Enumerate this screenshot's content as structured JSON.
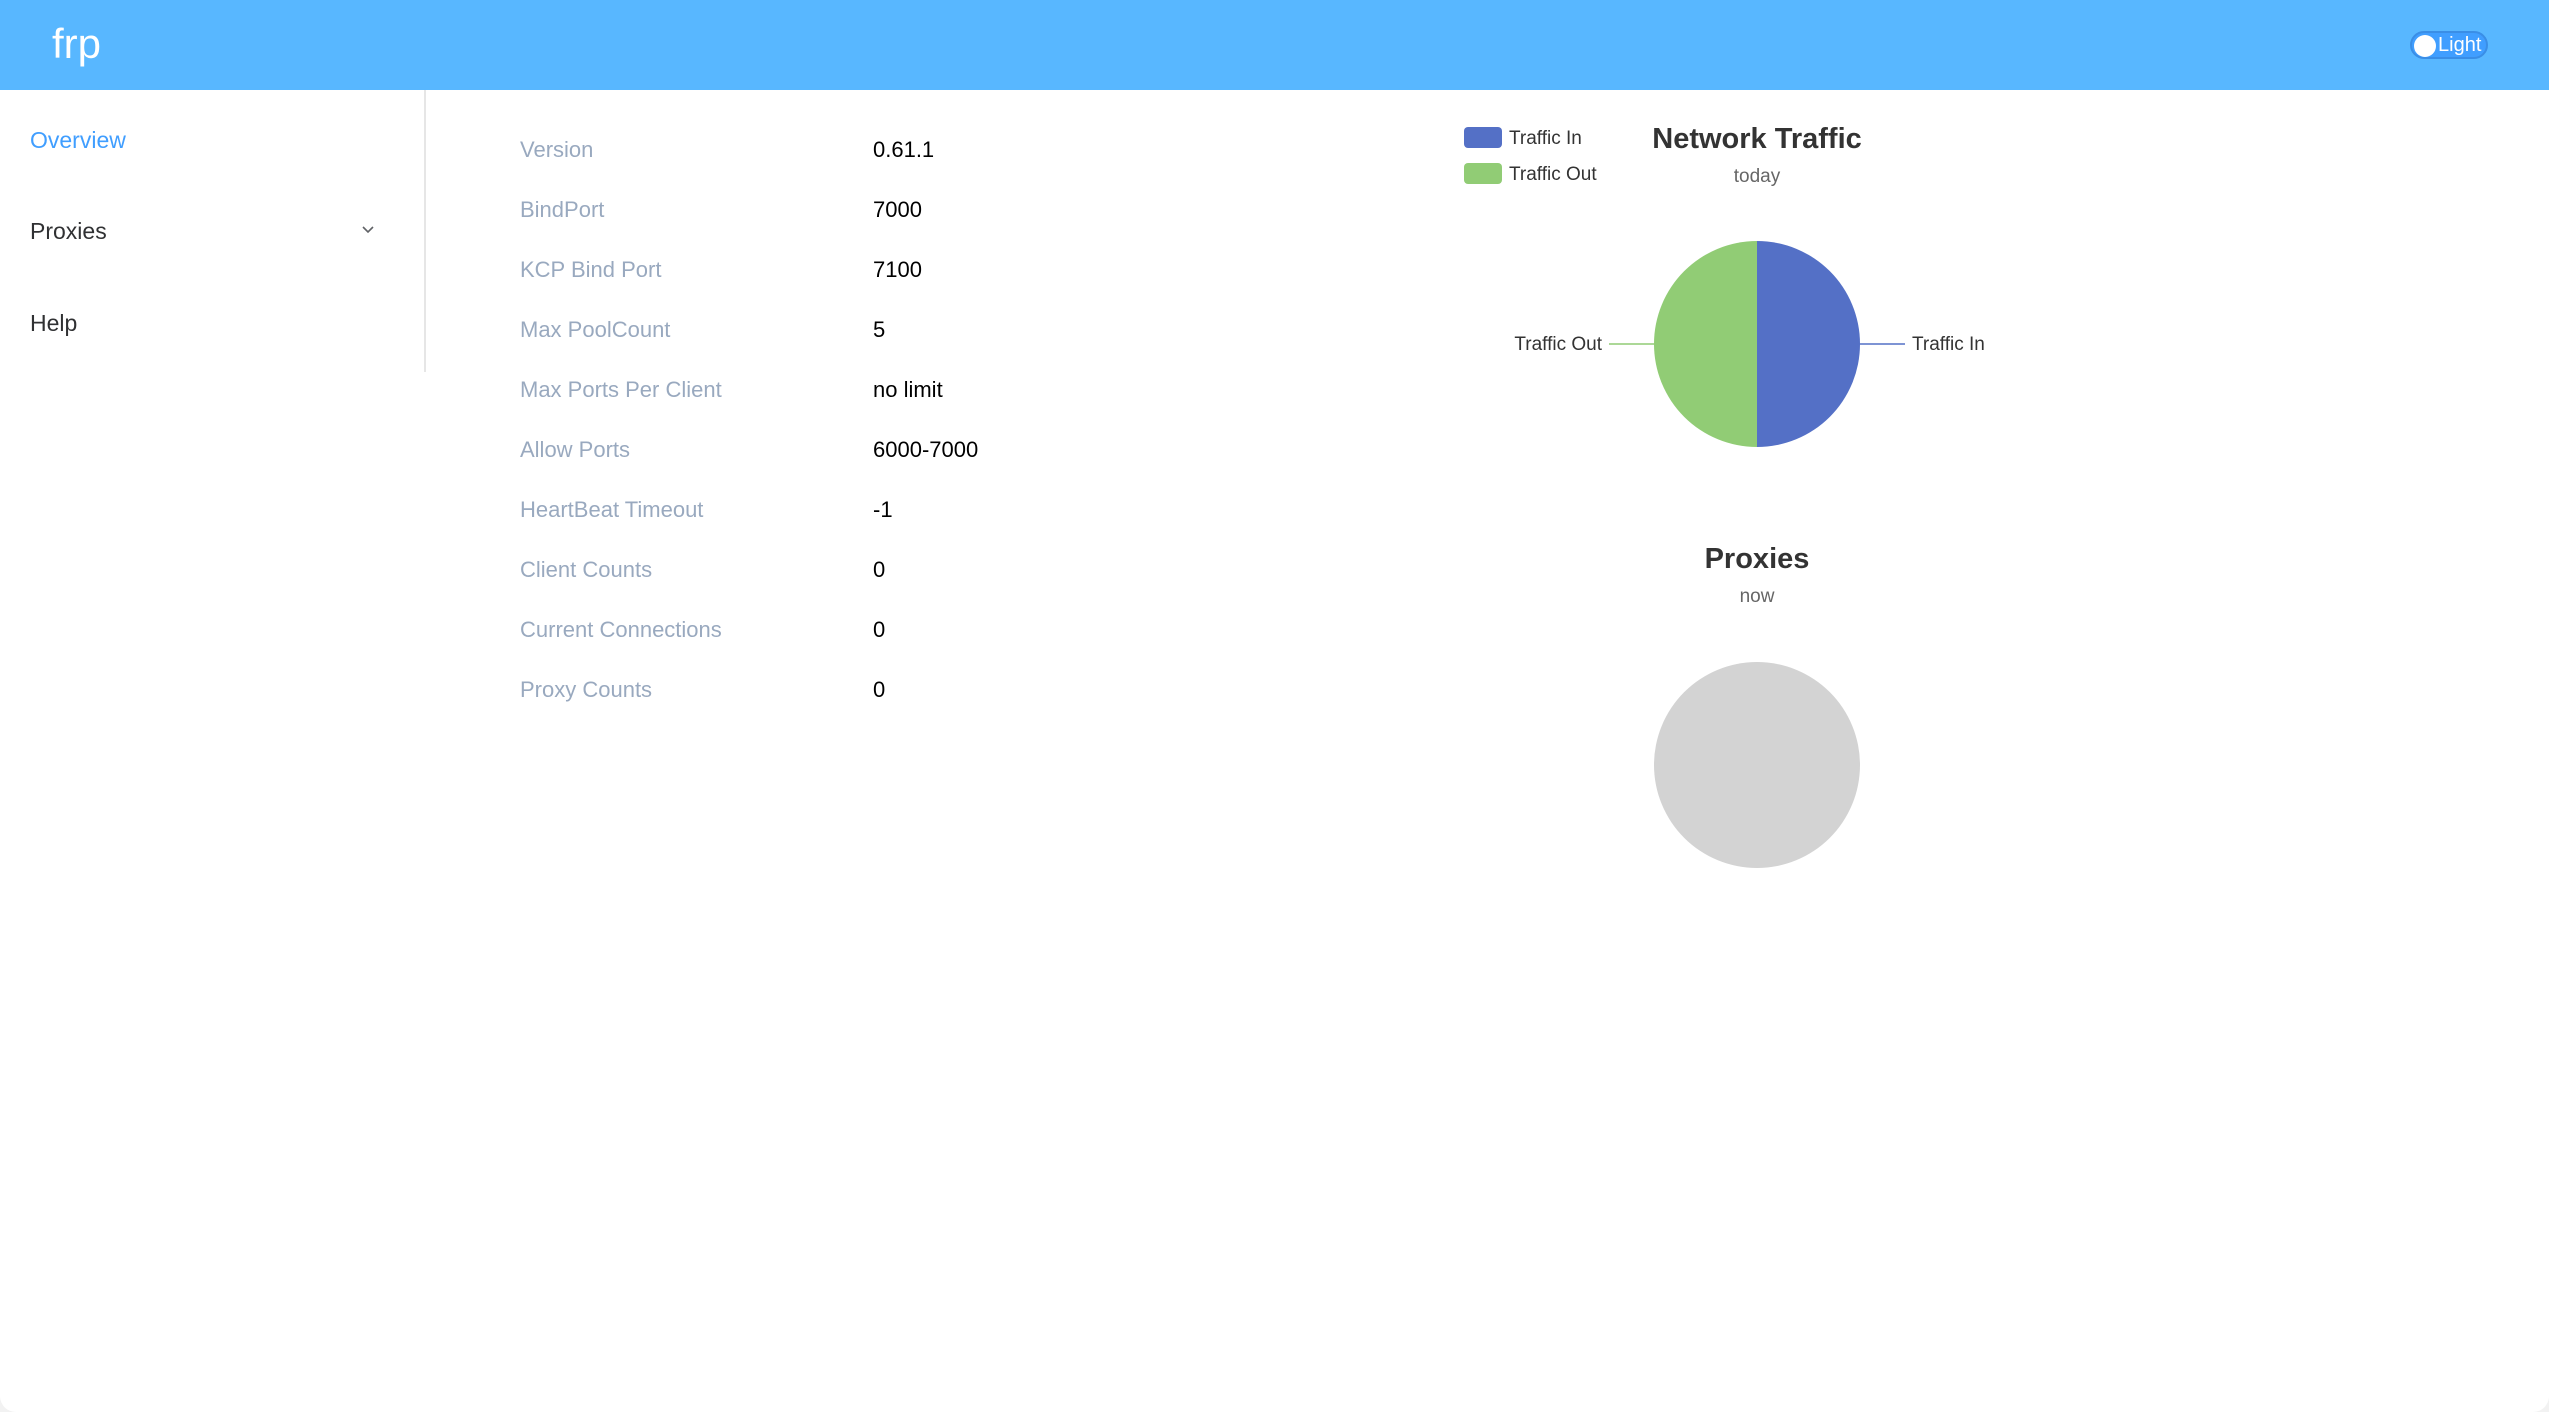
{
  "header": {
    "brand": "frp",
    "theme_label": "Light"
  },
  "sidebar": {
    "items": [
      {
        "label": "Overview",
        "active": true
      },
      {
        "label": "Proxies",
        "has_submenu": true
      },
      {
        "label": "Help"
      }
    ]
  },
  "server_info": [
    {
      "label": "Version",
      "value": "0.61.1"
    },
    {
      "label": "BindPort",
      "value": "7000"
    },
    {
      "label": "KCP Bind Port",
      "value": "7100"
    },
    {
      "label": "Max PoolCount",
      "value": "5"
    },
    {
      "label": "Max Ports Per Client",
      "value": "no limit"
    },
    {
      "label": "Allow Ports",
      "value": "6000-7000"
    },
    {
      "label": "HeartBeat Timeout",
      "value": "-1"
    },
    {
      "label": "Client Counts",
      "value": "0"
    },
    {
      "label": "Current Connections",
      "value": "0"
    },
    {
      "label": "Proxy Counts",
      "value": "0"
    }
  ],
  "chart_data": [
    {
      "type": "pie",
      "title": "Network Traffic",
      "subtitle": "today",
      "legend": [
        "Traffic In",
        "Traffic Out"
      ],
      "legend_position": "top-left",
      "series": [
        {
          "name": "Traffic In",
          "value": 50,
          "color": "#5470c6"
        },
        {
          "name": "Traffic Out",
          "value": 50,
          "color": "#91cc75"
        }
      ]
    },
    {
      "type": "pie",
      "title": "Proxies",
      "subtitle": "now",
      "series": [],
      "empty_color": "#d3d3d3"
    }
  ]
}
